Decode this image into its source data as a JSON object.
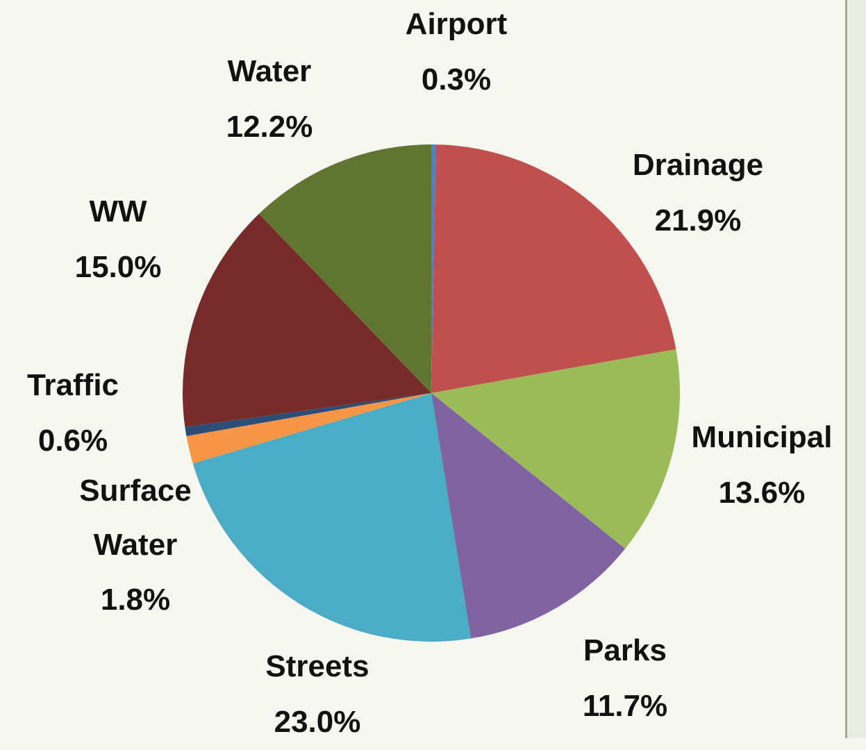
{
  "chart_data": {
    "type": "pie",
    "categories": [
      "Airport",
      "Drainage",
      "Municipal",
      "Parks",
      "Streets",
      "Surface Water",
      "Traffic",
      "WW",
      "Water"
    ],
    "values": [
      0.3,
      21.9,
      13.6,
      11.7,
      23.0,
      1.8,
      0.6,
      15.0,
      12.2
    ],
    "value_labels": [
      "0.3%",
      "21.9%",
      "13.6%",
      "11.7%",
      "23.0%",
      "1.8%",
      "0.6%",
      "15.0%",
      "12.2%"
    ],
    "colors": [
      "#4f81bd",
      "#c0504d",
      "#9bbb59",
      "#8064a2",
      "#4bacc6",
      "#f79646",
      "#2c4d75",
      "#772c2a",
      "#5f7530"
    ]
  }
}
